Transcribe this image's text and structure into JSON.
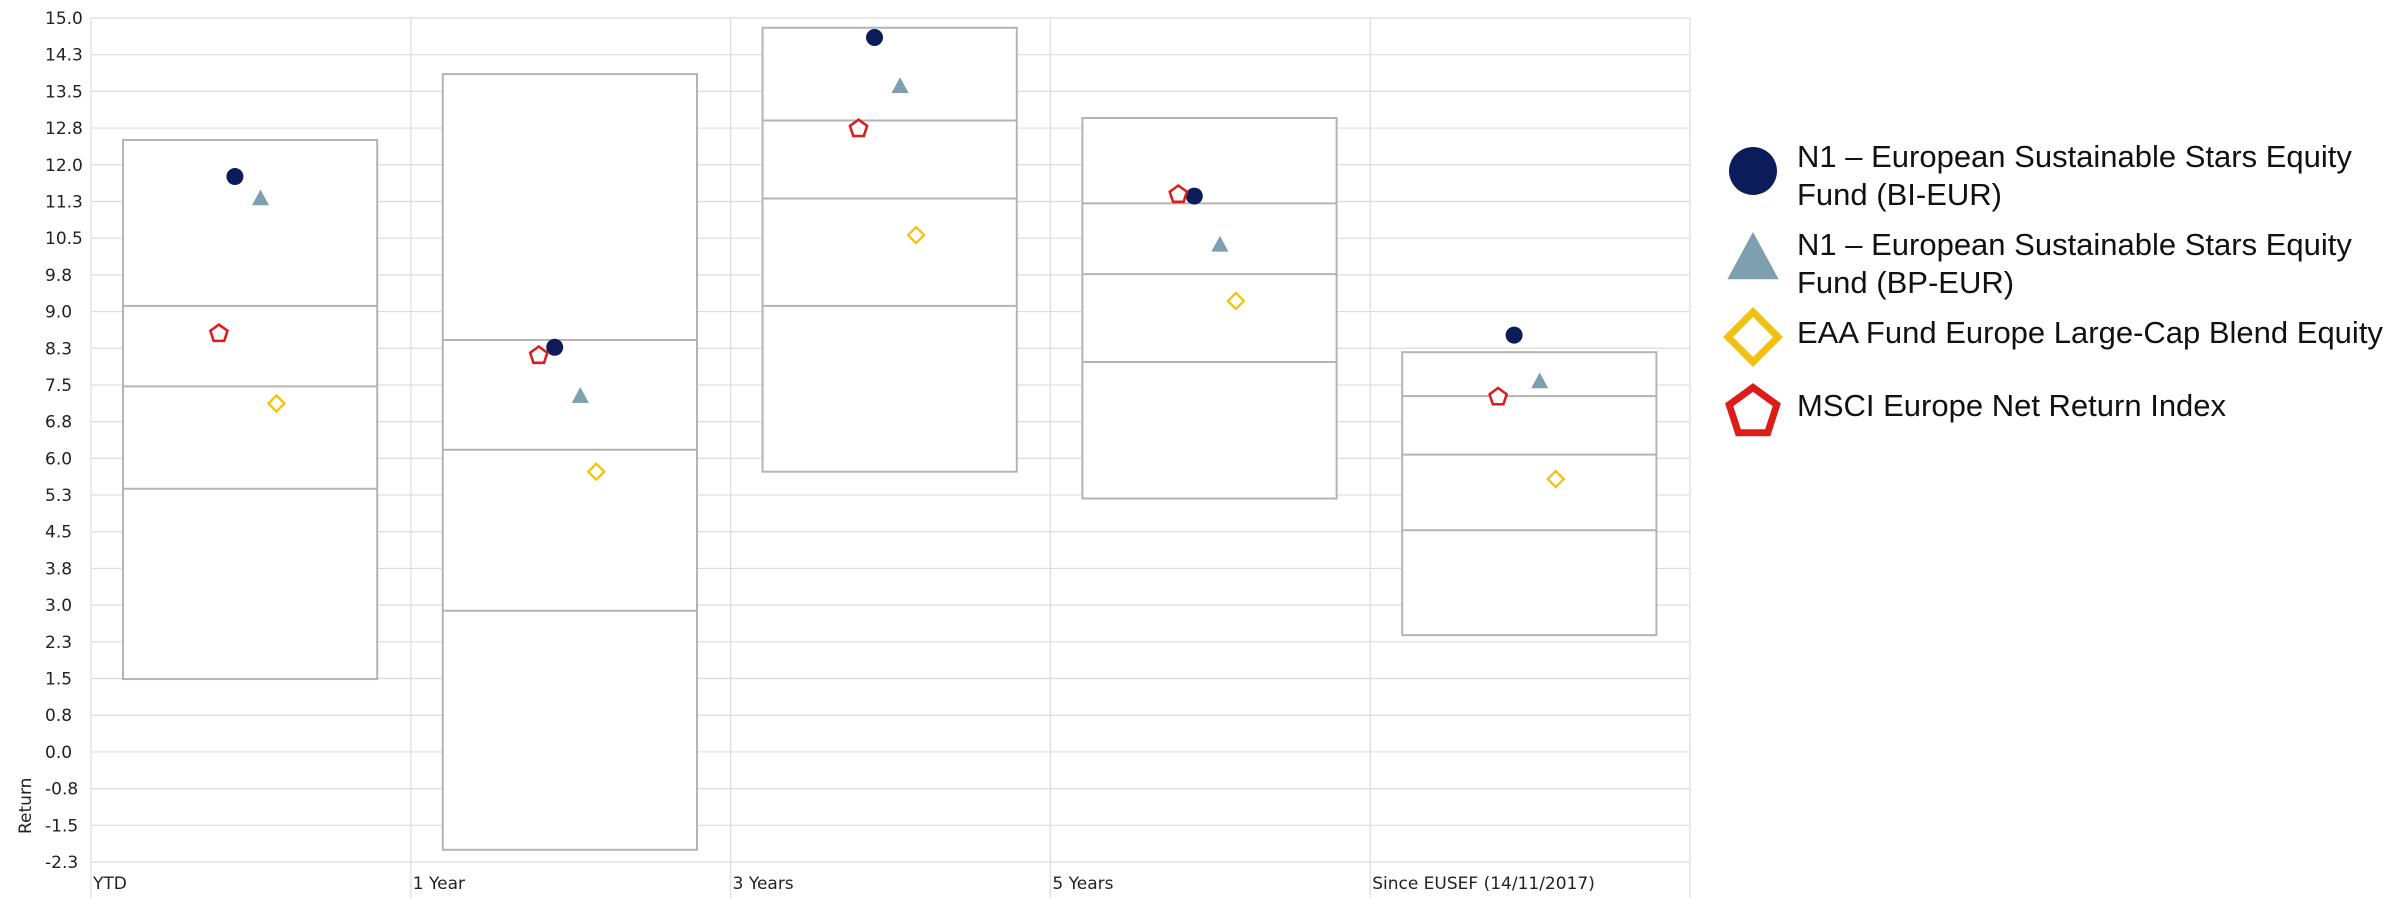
{
  "chart_data": {
    "type": "box-scatter",
    "title": "",
    "xlabel": "",
    "ylabel": "Return",
    "ylim": [
      -2.3,
      15.0
    ],
    "yticks": [
      "15.0",
      "14.3",
      "13.5",
      "12.8",
      "12.0",
      "11.3",
      "10.5",
      "9.8",
      "9.0",
      "8.3",
      "7.5",
      "6.8",
      "6.0",
      "5.3",
      "4.5",
      "3.8",
      "3.0",
      "2.3",
      "1.5",
      "0.8",
      "0.0",
      "-0.8",
      "-1.5",
      "-2.3"
    ],
    "categories": [
      "YTD",
      "1 Year",
      "3 Years",
      "5 Years",
      "Since EUSEF (14/11/2017)"
    ],
    "grid": true,
    "legend_position": "right",
    "boxes": [
      {
        "category": "YTD",
        "high": 12.5,
        "q3": 9.1,
        "median": 7.45,
        "q1": 5.35,
        "low": 1.45
      },
      {
        "category": "1 Year",
        "high": 13.85,
        "q3": 8.4,
        "median": 6.15,
        "q1": 2.85,
        "low": -2.05
      },
      {
        "category": "3 Years",
        "high": 14.8,
        "q3": 12.9,
        "median": 11.3,
        "q1": 9.1,
        "low": 5.7
      },
      {
        "category": "5 Years",
        "high": 12.95,
        "q3": 11.2,
        "median": 9.75,
        "q1": 7.95,
        "low": 5.15
      },
      {
        "category": "Since EUSEF (14/11/2017)",
        "high": 8.15,
        "q3": 7.25,
        "median": 6.05,
        "q1": 4.5,
        "low": 2.35
      }
    ],
    "series": [
      {
        "name": "N1 – European Sustainable Stars Equity Fund (BI-EUR)",
        "label_lines": [
          "N1 – European Sustainable Stars Equity",
          "Fund (BI-EUR)"
        ],
        "marker": "circle",
        "color": "#0c1c5a",
        "values": [
          11.75,
          8.25,
          14.6,
          11.35,
          8.5
        ]
      },
      {
        "name": "N1 – European Sustainable Stars Equity Fund (BP-EUR)",
        "label_lines": [
          "N1 – European Sustainable Stars Equity",
          "Fund (BP-EUR)"
        ],
        "marker": "triangle",
        "color": "#7d9fae",
        "values": [
          11.3,
          7.25,
          13.6,
          10.35,
          7.55
        ]
      },
      {
        "name": "EAA Fund Europe Large-Cap Blend Equity",
        "label_lines": [
          "EAA Fund Europe Large-Cap Blend Equity"
        ],
        "marker": "diamond",
        "color": "#f2c10f",
        "values": [
          7.1,
          5.7,
          10.55,
          9.2,
          5.55
        ]
      },
      {
        "name": "MSCI Europe Net Return Index",
        "label_lines": [
          "MSCI Europe Net Return Index"
        ],
        "marker": "pentagon",
        "color": "#dd1c1a",
        "values": [
          8.55,
          8.1,
          12.75,
          11.4,
          7.25
        ]
      }
    ]
  }
}
